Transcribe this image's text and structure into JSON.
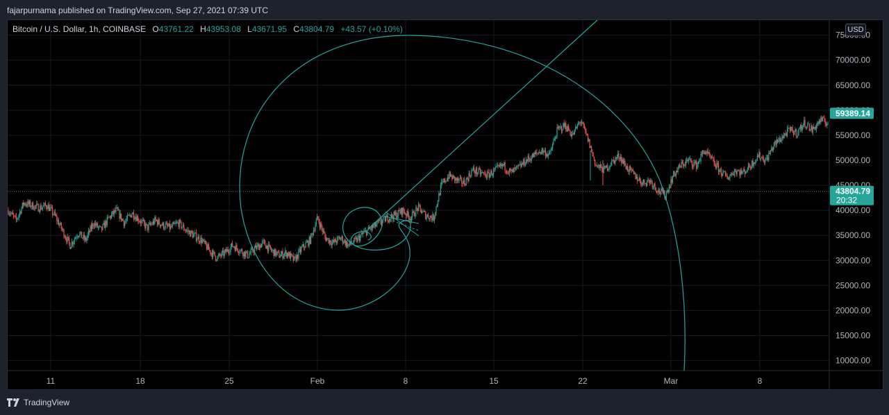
{
  "header": {
    "publisher_text": "fajarpurnama published on TradingView.com, Sep 27, 2021 07:39 UTC"
  },
  "legend": {
    "symbol": "Bitcoin / U.S. Dollar, 1h, COINBASE",
    "o_label": "O",
    "o_value": "43761.22",
    "h_label": "H",
    "h_value": "43953.08",
    "l_label": "L",
    "l_value": "43671.95",
    "c_label": "C",
    "c_value": "43804.79",
    "change": "+43.57 (+0.10%)"
  },
  "currency_button": "USD",
  "price_axis": {
    "ticks": [
      "75000.00",
      "70000.00",
      "65000.00",
      "60000.00",
      "55000.00",
      "50000.00",
      "45000.00",
      "40000.00",
      "35000.00",
      "30000.00",
      "25000.00",
      "20000.00",
      "15000.00",
      "10000.00"
    ],
    "last_price_label": "43804.79",
    "countdown_label": "20:32",
    "crosshair_label": "59389.14"
  },
  "time_axis": {
    "ticks": [
      "11",
      "18",
      "25",
      "Feb",
      "8",
      "15",
      "22",
      "Mar",
      "8"
    ]
  },
  "footer": {
    "brand": "TradingView"
  },
  "colors": {
    "up": "#26a69a",
    "down": "#ef5350",
    "drawing": "#26a69a",
    "price_tag": "#26a69a",
    "background": "#000000",
    "frame": "#1e222d"
  },
  "chart_data": {
    "type": "candlestick",
    "symbol": "Bitcoin / U.S. Dollar",
    "interval": "1h",
    "exchange": "COINBASE",
    "ylim": [
      8000,
      78000
    ],
    "last_price": 43804.79,
    "x": [
      "11",
      "12",
      "13",
      "14",
      "15",
      "16",
      "17",
      "18",
      "19",
      "20",
      "21",
      "22",
      "23",
      "24",
      "25",
      "26",
      "27",
      "28",
      "29",
      "30",
      "31",
      "Feb",
      "2",
      "3",
      "4",
      "5",
      "6",
      "7",
      "8",
      "9",
      "10",
      "11",
      "12",
      "13",
      "14",
      "15",
      "16",
      "17",
      "18",
      "19",
      "20",
      "21",
      "22",
      "23",
      "24",
      "25",
      "26",
      "27",
      "28",
      "Mar",
      "2",
      "3",
      "4",
      "5",
      "6",
      "7",
      "8",
      "9",
      "10",
      "11",
      "12"
    ],
    "close_path": [
      40000,
      38000,
      41500,
      41000,
      40500,
      41000,
      39000,
      36000,
      33000,
      35500,
      34000,
      37500,
      36000,
      38500,
      40000,
      37500,
      39500,
      38000,
      36500,
      38000,
      37000,
      36500,
      37500,
      36000,
      35000,
      34000,
      32000,
      30500,
      31500,
      33000,
      32000,
      31000,
      32500,
      33500,
      32000,
      31000,
      31500,
      30000,
      32500,
      34000,
      38500,
      34500,
      33500,
      34500,
      33000,
      34000,
      35500,
      36500,
      37500,
      38500,
      39000,
      40000,
      38500,
      40500,
      39000,
      38500,
      45000,
      47000,
      46000,
      45500,
      48000,
      47500,
      47000,
      48000,
      49000,
      47500,
      48500,
      50000,
      51000,
      52000,
      51000,
      56000,
      57000,
      55000,
      58000,
      54000,
      49000,
      48000,
      49500,
      51000,
      48500,
      47000,
      45500,
      46000,
      44000,
      43000,
      47000,
      49000,
      50000,
      49000,
      52000,
      50000,
      48000,
      46500,
      48000,
      47500,
      49000,
      51000,
      50000,
      53000,
      54500,
      56000,
      55500,
      57500,
      56000,
      58000,
      57500
    ],
    "drawings": {
      "trend_line": [
        {
          "date": "5",
          "value": 36500
        },
        {
          "date": "20",
          "value": 78000
        }
      ],
      "fibonacci_spiral": "centered near Feb 4, approx 37500"
    }
  }
}
